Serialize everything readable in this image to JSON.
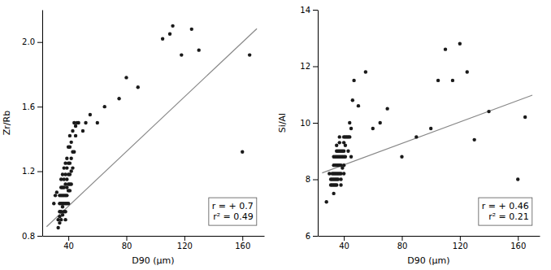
{
  "chart_data": [
    {
      "type": "scatter",
      "xlabel": "D90 (μm)",
      "ylabel": "Zr/Rb",
      "xlim": [
        22,
        175
      ],
      "ylim": [
        0.8,
        2.2
      ],
      "xticks": [
        40,
        80,
        120,
        160
      ],
      "yticks": [
        0.8,
        1.2,
        1.6,
        {
          "value": 2.0,
          "label": "2.0"
        }
      ],
      "annotations": [
        "r = + 0.7",
        "r² = 0.49"
      ],
      "series": [
        {
          "type": "scatter",
          "color": "#1a1a1a",
          "x": [
            30,
            31,
            32,
            33,
            33,
            34,
            34,
            34,
            34,
            34,
            35,
            35,
            35,
            35,
            35,
            35,
            36,
            36,
            36,
            36,
            36,
            36,
            37,
            37,
            37,
            37,
            37,
            37,
            38,
            38,
            38,
            38,
            38,
            38,
            38,
            39,
            39,
            39,
            39,
            39,
            39,
            40,
            40,
            40,
            40,
            40,
            40,
            41,
            41,
            41,
            41,
            41,
            41,
            42,
            42,
            42,
            42,
            43,
            43,
            43,
            44,
            44,
            45,
            45,
            46,
            47,
            50,
            52,
            55,
            60,
            65,
            75,
            80,
            88,
            105,
            110,
            112,
            118,
            125,
            130,
            160,
            165
          ],
          "values": [
            1.0,
            1.05,
            1.07,
            0.85,
            0.9,
            0.88,
            0.92,
            0.95,
            1.0,
            1.05,
            0.9,
            0.95,
            1.0,
            1.05,
            1.1,
            1.15,
            0.93,
            0.98,
            1.0,
            1.05,
            1.1,
            1.18,
            0.95,
            1.0,
            1.05,
            1.1,
            1.15,
            1.22,
            0.9,
            0.95,
            1.0,
            1.05,
            1.12,
            1.18,
            1.25,
            1.0,
            1.05,
            1.1,
            1.15,
            1.22,
            1.28,
            1.0,
            1.08,
            1.12,
            1.18,
            1.25,
            1.35,
            1.08,
            1.12,
            1.18,
            1.25,
            1.35,
            1.42,
            1.12,
            1.2,
            1.28,
            1.38,
            1.22,
            1.32,
            1.45,
            1.32,
            1.5,
            1.42,
            1.48,
            1.5,
            1.5,
            1.45,
            1.5,
            1.55,
            1.5,
            1.6,
            1.65,
            1.78,
            1.72,
            2.02,
            2.05,
            2.1,
            1.92,
            2.08,
            1.95,
            1.32,
            1.92
          ]
        },
        {
          "type": "line",
          "color": "#888888",
          "x": [
            25,
            170
          ],
          "values": [
            0.8565,
            2.0832
          ]
        }
      ]
    },
    {
      "type": "scatter",
      "xlabel": "D90 (μm)",
      "ylabel": "Si/Al",
      "xlim": [
        22,
        175
      ],
      "ylim": [
        6,
        14
      ],
      "xticks": [
        40,
        80,
        120,
        160
      ],
      "yticks": [
        6,
        8,
        10,
        12,
        14
      ],
      "annotations": [
        "r = + 0.46",
        "r² = 0.21"
      ],
      "series": [
        {
          "type": "scatter",
          "color": "#1a1a1a",
          "x": [
            28,
            30,
            31,
            31,
            32,
            32,
            32,
            33,
            33,
            33,
            33,
            33,
            33,
            34,
            34,
            34,
            34,
            34,
            35,
            35,
            35,
            35,
            35,
            35,
            35,
            36,
            36,
            36,
            36,
            36,
            37,
            37,
            37,
            37,
            37,
            37,
            38,
            38,
            38,
            38,
            38,
            38,
            39,
            39,
            39,
            40,
            40,
            40,
            40,
            40,
            40,
            41,
            41,
            41,
            42,
            43,
            43,
            44,
            44,
            45,
            45,
            46,
            47,
            50,
            55,
            60,
            65,
            70,
            80,
            90,
            100,
            105,
            110,
            115,
            120,
            125,
            130,
            140,
            160,
            165
          ],
          "values": [
            7.2,
            8.2,
            7.8,
            8.0,
            7.8,
            8.0,
            8.2,
            7.5,
            7.8,
            8.0,
            8.2,
            8.5,
            8.8,
            7.8,
            8.0,
            8.2,
            8.5,
            8.8,
            7.8,
            8.0,
            8.2,
            8.5,
            8.8,
            9.0,
            9.2,
            8.0,
            8.2,
            8.5,
            8.8,
            9.0,
            8.2,
            8.5,
            8.8,
            9.0,
            9.3,
            9.5,
            7.8,
            8.0,
            8.2,
            8.5,
            8.8,
            9.0,
            8.4,
            8.8,
            9.0,
            8.2,
            8.5,
            8.8,
            9.0,
            9.3,
            9.5,
            8.8,
            9.2,
            9.5,
            9.5,
            9.0,
            9.5,
            9.5,
            10.0,
            8.8,
            9.8,
            10.8,
            11.5,
            10.6,
            11.8,
            9.8,
            10.0,
            10.5,
            8.8,
            9.5,
            9.8,
            11.5,
            12.6,
            11.5,
            12.8,
            11.8,
            9.4,
            10.4,
            8.0,
            10.2
          ]
        },
        {
          "type": "line",
          "color": "#888888",
          "x": [
            25,
            170
          ],
          "values": [
            8.225,
            10.98
          ]
        }
      ]
    }
  ]
}
